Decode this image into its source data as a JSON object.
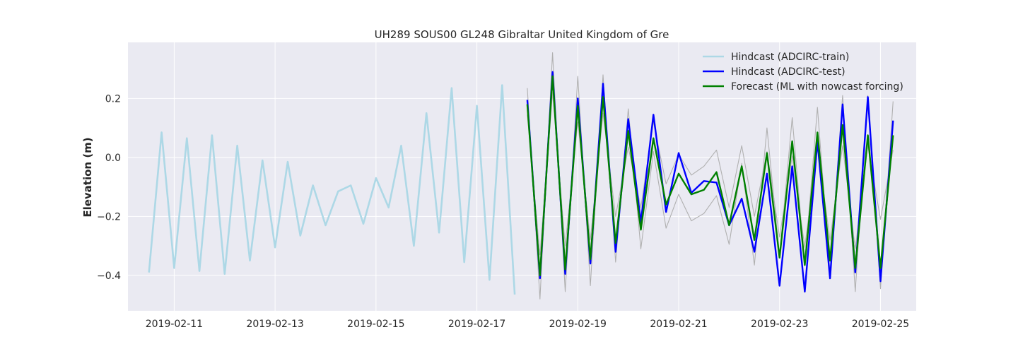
{
  "chart_data": {
    "type": "line",
    "title": "UH289 SOUS00 GL248 Gibraltar United Kingdom of Gre",
    "xlabel": "",
    "ylabel": "Elevation (m)",
    "x_axis_type": "date",
    "xlim": [
      "2019-02-10T02:00",
      "2019-02-25T17:00"
    ],
    "ylim": [
      -0.52,
      0.39
    ],
    "x_ticks": [
      "2019-02-11",
      "2019-02-13",
      "2019-02-15",
      "2019-02-17",
      "2019-02-19",
      "2019-02-21",
      "2019-02-23",
      "2019-02-25"
    ],
    "y_ticks": [
      -0.4,
      -0.2,
      0.0,
      0.2
    ],
    "y_tick_labels": [
      "−0.4",
      "−0.2",
      "0.0",
      "0.2"
    ],
    "grid": true,
    "background": "#eaeaf2",
    "legend_position": "top-right",
    "legend": [
      {
        "label": "Hindcast (ADCIRC-train)",
        "color": "#add8e6"
      },
      {
        "label": "Hindcast (ADCIRC-test)",
        "color": "#0000ff"
      },
      {
        "label": "Forecast (ML with nowcast forcing)",
        "color": "#008000"
      }
    ],
    "series": [
      {
        "name": "Hindcast (ADCIRC-train)",
        "color": "#add8e6",
        "x": [
          "2019-02-10T12:00",
          "2019-02-10T18:00",
          "2019-02-11T00:00",
          "2019-02-11T06:00",
          "2019-02-11T12:00",
          "2019-02-11T18:00",
          "2019-02-12T00:00",
          "2019-02-12T06:00",
          "2019-02-12T12:00",
          "2019-02-12T18:00",
          "2019-02-13T00:00",
          "2019-02-13T06:00",
          "2019-02-13T12:00",
          "2019-02-13T18:00",
          "2019-02-14T00:00",
          "2019-02-14T06:00",
          "2019-02-14T12:00",
          "2019-02-14T18:00",
          "2019-02-15T00:00",
          "2019-02-15T06:00",
          "2019-02-15T12:00",
          "2019-02-15T18:00",
          "2019-02-16T00:00",
          "2019-02-16T06:00",
          "2019-02-16T12:00",
          "2019-02-16T18:00",
          "2019-02-17T00:00",
          "2019-02-17T06:00",
          "2019-02-17T12:00",
          "2019-02-17T18:00"
        ],
        "values": [
          -0.39,
          0.085,
          -0.375,
          0.065,
          -0.385,
          0.075,
          -0.395,
          0.04,
          -0.35,
          -0.01,
          -0.305,
          -0.015,
          -0.265,
          -0.095,
          -0.23,
          -0.115,
          -0.095,
          -0.225,
          -0.07,
          -0.17,
          0.04,
          -0.3,
          0.15,
          -0.255,
          0.235,
          -0.355,
          0.175,
          -0.415,
          0.245,
          -0.465
        ]
      },
      {
        "name": "Hindcast (ADCIRC-test)",
        "color": "#0000ff",
        "x": [
          "2019-02-18T00:00",
          "2019-02-18T06:00",
          "2019-02-18T12:00",
          "2019-02-18T18:00",
          "2019-02-19T00:00",
          "2019-02-19T06:00",
          "2019-02-19T12:00",
          "2019-02-19T18:00",
          "2019-02-20T00:00",
          "2019-02-20T06:00",
          "2019-02-20T12:00",
          "2019-02-20T18:00",
          "2019-02-21T00:00",
          "2019-02-21T06:00",
          "2019-02-21T12:00",
          "2019-02-21T18:00",
          "2019-02-22T00:00",
          "2019-02-22T06:00",
          "2019-02-22T12:00",
          "2019-02-22T18:00",
          "2019-02-23T00:00",
          "2019-02-23T06:00",
          "2019-02-23T12:00",
          "2019-02-23T18:00",
          "2019-02-24T00:00",
          "2019-02-24T06:00",
          "2019-02-24T12:00",
          "2019-02-24T18:00",
          "2019-02-25T00:00",
          "2019-02-25T06:00"
        ],
        "values": [
          0.195,
          -0.41,
          0.29,
          -0.395,
          0.2,
          -0.36,
          0.25,
          -0.32,
          0.13,
          -0.22,
          0.145,
          -0.185,
          0.015,
          -0.12,
          -0.08,
          -0.085,
          -0.23,
          -0.14,
          -0.32,
          -0.055,
          -0.435,
          -0.03,
          -0.455,
          0.055,
          -0.41,
          0.18,
          -0.39,
          0.205,
          -0.42,
          0.125
        ]
      },
      {
        "name": "Forecast (ML with nowcast forcing)",
        "color": "#008000",
        "x": [
          "2019-02-18T00:00",
          "2019-02-18T06:00",
          "2019-02-18T12:00",
          "2019-02-18T18:00",
          "2019-02-19T00:00",
          "2019-02-19T06:00",
          "2019-02-19T12:00",
          "2019-02-19T18:00",
          "2019-02-20T00:00",
          "2019-02-20T06:00",
          "2019-02-20T12:00",
          "2019-02-20T18:00",
          "2019-02-21T00:00",
          "2019-02-21T06:00",
          "2019-02-21T12:00",
          "2019-02-21T18:00",
          "2019-02-22T00:00",
          "2019-02-22T06:00",
          "2019-02-22T12:00",
          "2019-02-22T18:00",
          "2019-02-23T00:00",
          "2019-02-23T06:00",
          "2019-02-23T12:00",
          "2019-02-23T18:00",
          "2019-02-24T00:00",
          "2019-02-24T06:00",
          "2019-02-24T12:00",
          "2019-02-24T18:00",
          "2019-02-25T00:00",
          "2019-02-25T06:00"
        ],
        "values": [
          0.18,
          -0.4,
          0.275,
          -0.38,
          0.175,
          -0.345,
          0.205,
          -0.29,
          0.09,
          -0.245,
          0.065,
          -0.16,
          -0.055,
          -0.125,
          -0.11,
          -0.05,
          -0.23,
          -0.03,
          -0.28,
          0.015,
          -0.34,
          0.055,
          -0.365,
          0.085,
          -0.35,
          0.11,
          -0.375,
          0.075,
          -0.375,
          0.075
        ]
      },
      {
        "name": "",
        "color": "#b0b0b0",
        "x": [
          "2019-02-18T00:00",
          "2019-02-18T06:00",
          "2019-02-18T12:00",
          "2019-02-18T18:00",
          "2019-02-19T00:00",
          "2019-02-19T06:00",
          "2019-02-19T12:00",
          "2019-02-19T18:00",
          "2019-02-20T00:00",
          "2019-02-20T06:00",
          "2019-02-20T12:00",
          "2019-02-20T18:00",
          "2019-02-21T00:00",
          "2019-02-21T06:00",
          "2019-02-21T12:00",
          "2019-02-21T18:00",
          "2019-02-22T00:00",
          "2019-02-22T06:00",
          "2019-02-22T12:00",
          "2019-02-22T18:00",
          "2019-02-23T00:00",
          "2019-02-23T06:00",
          "2019-02-23T12:00",
          "2019-02-23T18:00",
          "2019-02-24T00:00",
          "2019-02-24T06:00",
          "2019-02-24T12:00",
          "2019-02-24T18:00",
          "2019-02-25T00:00",
          "2019-02-25T06:00"
        ],
        "values": [
          0.235,
          -0.48,
          0.355,
          -0.455,
          0.275,
          -0.435,
          0.28,
          -0.355,
          0.165,
          -0.31,
          0.02,
          -0.24,
          -0.125,
          -0.215,
          -0.19,
          -0.13,
          -0.295,
          -0.02,
          -0.365,
          0.1,
          -0.335,
          0.135,
          -0.36,
          0.17,
          -0.395,
          0.21,
          -0.455,
          0.21,
          -0.445,
          0.19
        ]
      },
      {
        "name": "",
        "color": "#b0b0b0",
        "x": [
          "2019-02-18T00:00",
          "2019-02-18T06:00",
          "2019-02-18T12:00",
          "2019-02-18T18:00",
          "2019-02-19T00:00",
          "2019-02-19T06:00",
          "2019-02-19T12:00",
          "2019-02-19T18:00",
          "2019-02-20T00:00",
          "2019-02-20T06:00",
          "2019-02-20T12:00",
          "2019-02-20T18:00",
          "2019-02-21T00:00",
          "2019-02-21T06:00",
          "2019-02-21T12:00",
          "2019-02-21T18:00",
          "2019-02-22T00:00",
          "2019-02-22T06:00",
          "2019-02-22T12:00",
          "2019-02-22T18:00",
          "2019-02-23T00:00",
          "2019-02-23T06:00",
          "2019-02-23T12:00",
          "2019-02-23T18:00",
          "2019-02-24T00:00",
          "2019-02-24T06:00",
          "2019-02-24T12:00",
          "2019-02-24T18:00",
          "2019-02-25T00:00",
          "2019-02-25T06:00"
        ],
        "values": [
          0.145,
          -0.33,
          0.22,
          -0.3,
          0.12,
          -0.28,
          0.15,
          -0.2,
          0.035,
          -0.17,
          0.12,
          -0.09,
          0.01,
          -0.06,
          -0.03,
          0.025,
          -0.17,
          0.04,
          -0.2,
          0.02,
          -0.27,
          0.005,
          -0.305,
          0.04,
          -0.28,
          0.04,
          -0.31,
          0.04,
          -0.21,
          0.025
        ]
      }
    ]
  }
}
